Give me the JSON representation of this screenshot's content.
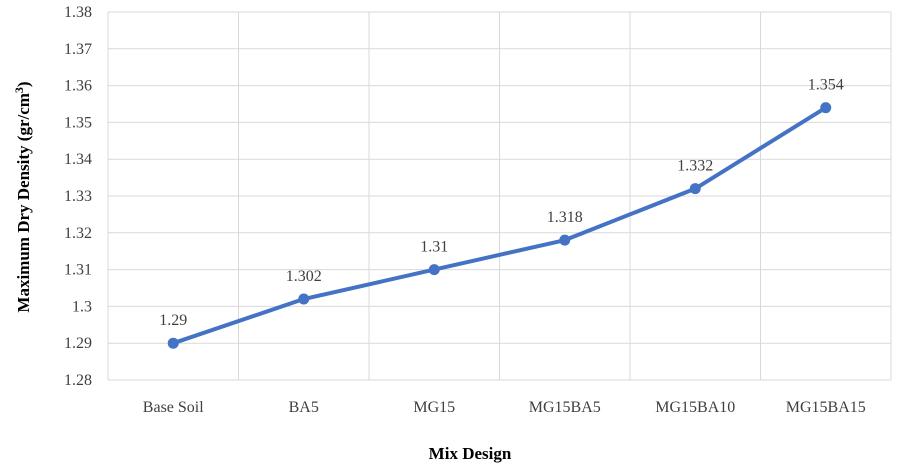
{
  "chart_data": {
    "type": "line",
    "categories": [
      "Base Soil",
      "BA5",
      "MG15",
      "MG15BA5",
      "MG15BA10",
      "MG15BA15"
    ],
    "series": [
      {
        "values": [
          1.29,
          1.302,
          1.31,
          1.318,
          1.332,
          1.354
        ],
        "data_labels": [
          "1.29",
          "1.302",
          "1.31",
          "1.318",
          "1.332",
          "1.354"
        ],
        "color": "#4472c4"
      }
    ],
    "xlabel": "Mix Design",
    "ylabel": {
      "main": "Maximum  Dry Density (gr/cm",
      "sup": "3",
      "close": ")"
    },
    "ylim": [
      1.28,
      1.38
    ],
    "yticks": [
      1.28,
      1.29,
      1.3,
      1.31,
      1.32,
      1.33,
      1.34,
      1.35,
      1.36,
      1.37,
      1.38
    ],
    "ytick_labels": [
      "1.28",
      "1.29",
      "1.3",
      "1.31",
      "1.32",
      "1.33",
      "1.34",
      "1.35",
      "1.36",
      "1.37",
      "1.38"
    ],
    "grid": true,
    "legend": "none"
  }
}
